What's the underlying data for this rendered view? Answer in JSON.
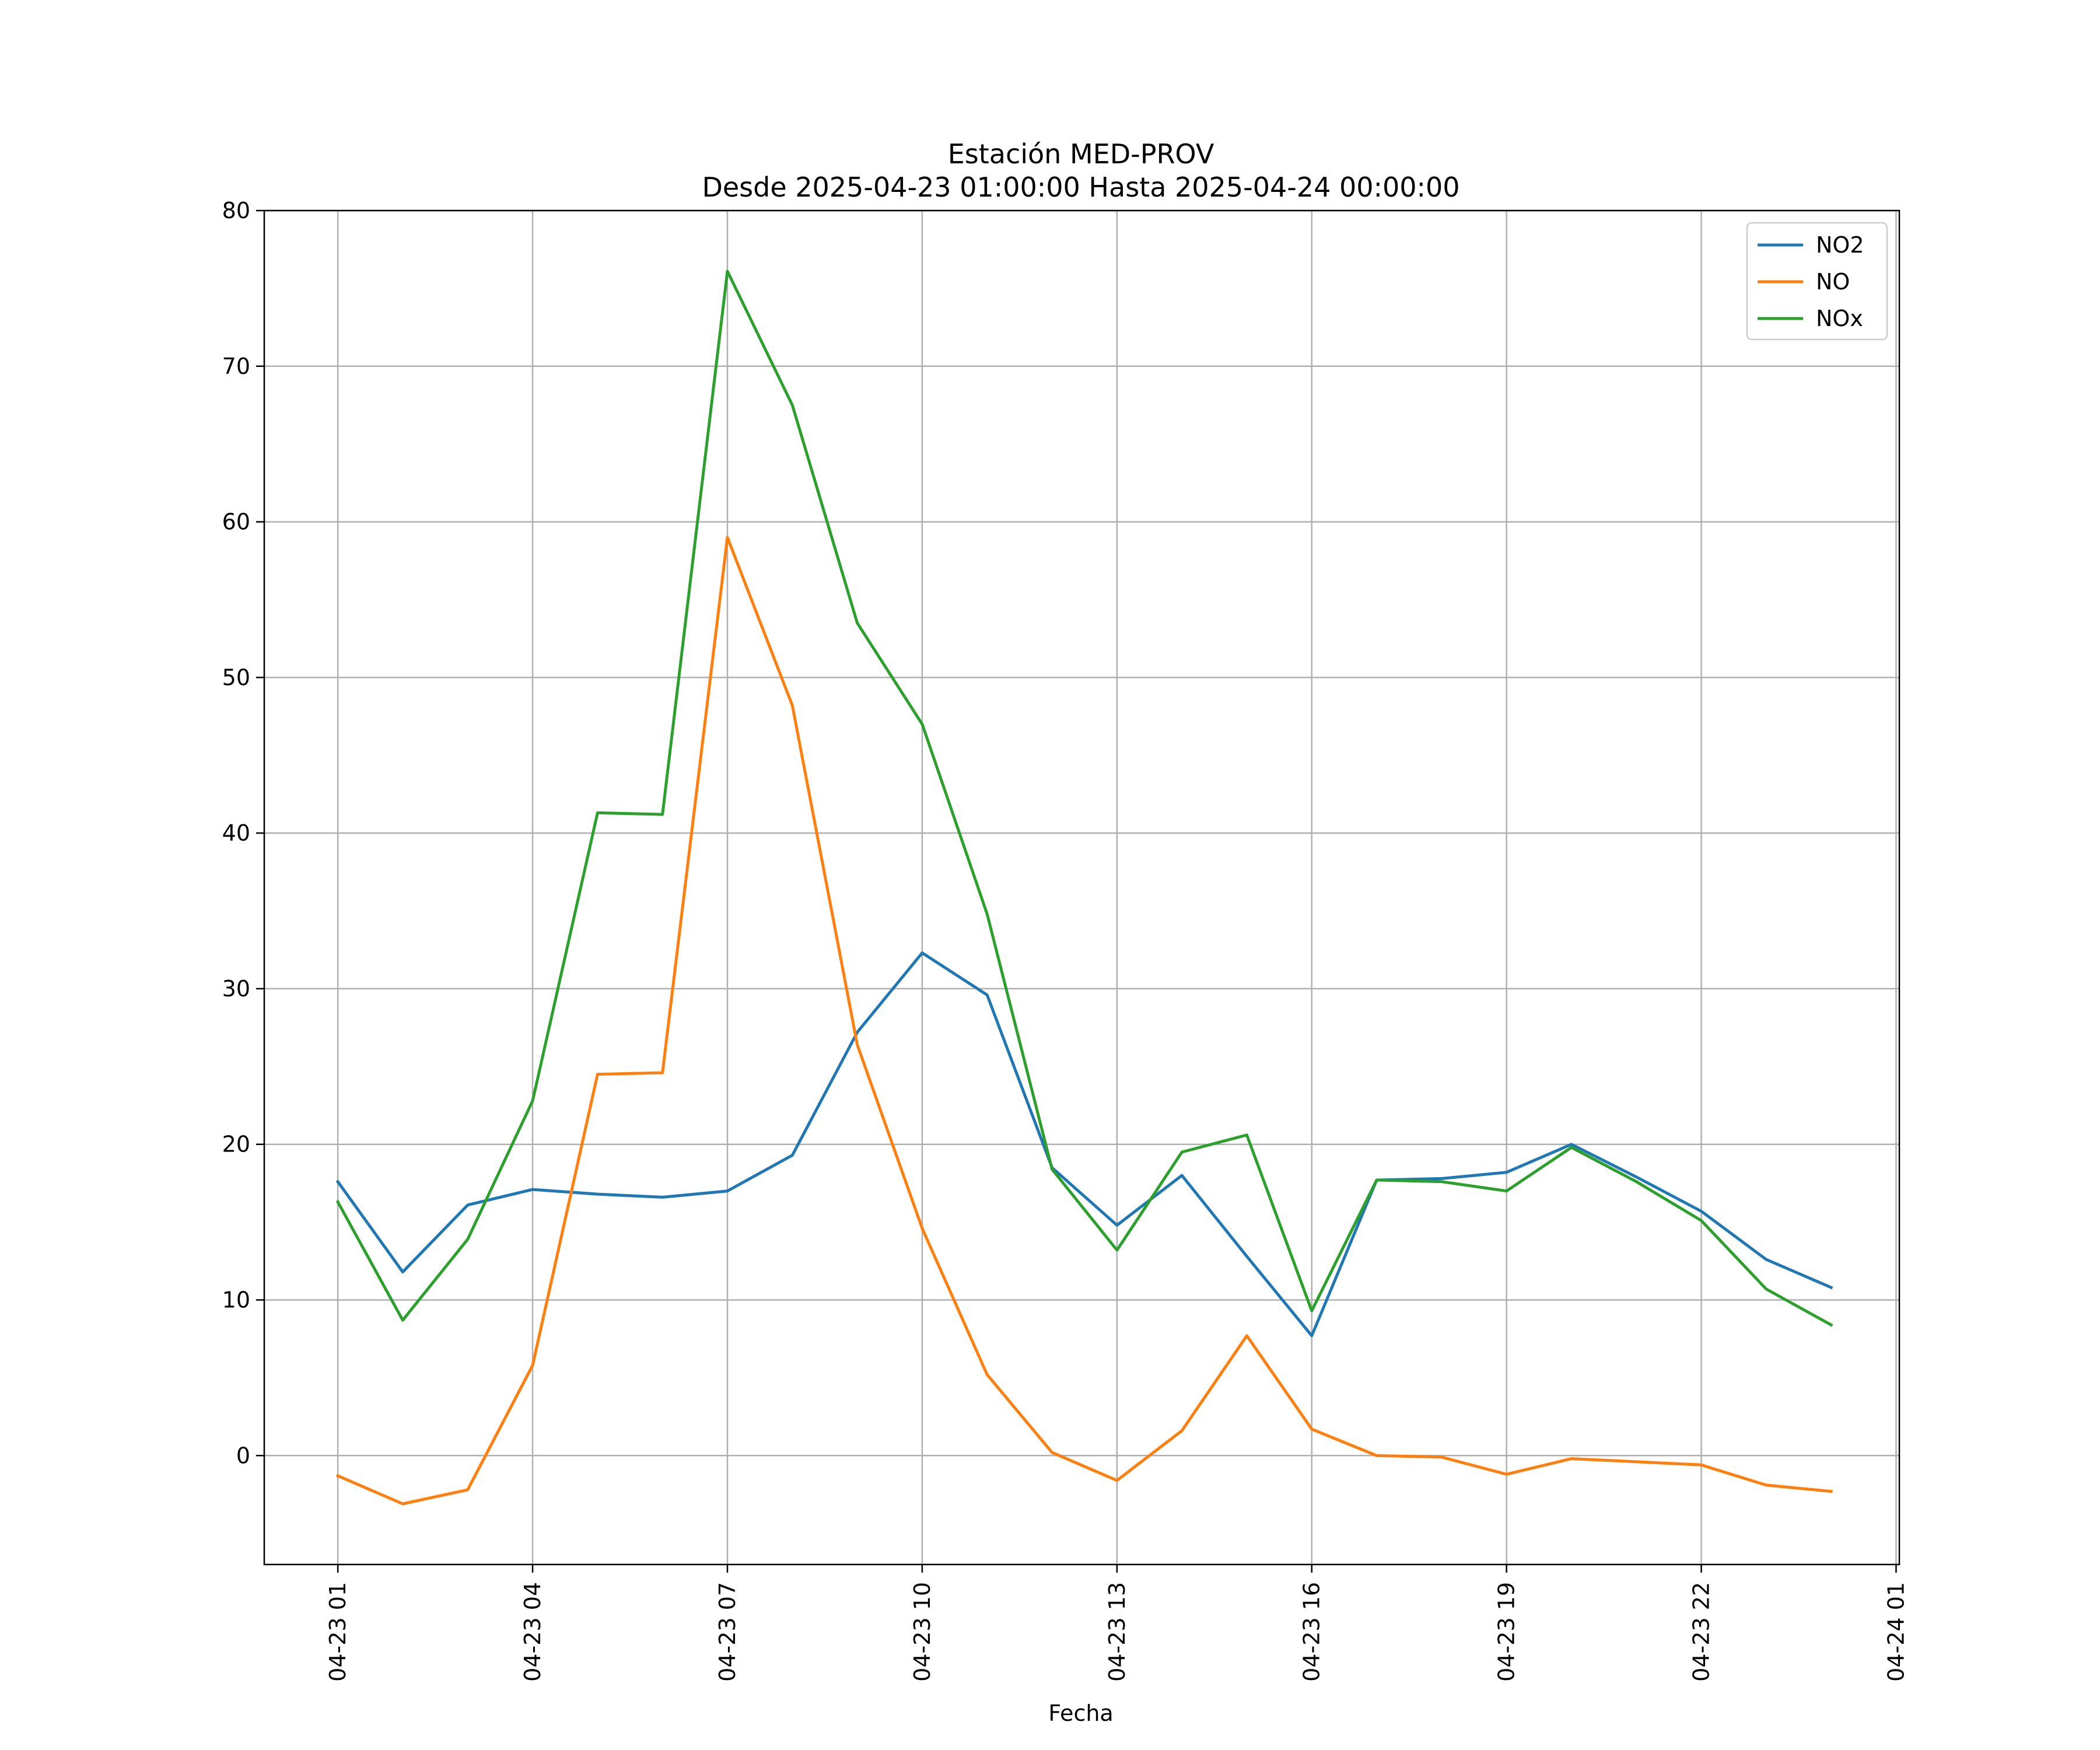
{
  "chart_data": {
    "type": "line",
    "title": "Estación MED-PROV",
    "subtitle": "Desde 2025-04-23 01:00:00 Hasta 2025-04-24 00:00:00",
    "xlabel": "Fecha",
    "ylabel": "",
    "x": [
      "2025-04-23 01:00",
      "2025-04-23 02:00",
      "2025-04-23 03:00",
      "2025-04-23 04:00",
      "2025-04-23 05:00",
      "2025-04-23 06:00",
      "2025-04-23 07:00",
      "2025-04-23 08:00",
      "2025-04-23 09:00",
      "2025-04-23 10:00",
      "2025-04-23 11:00",
      "2025-04-23 12:00",
      "2025-04-23 13:00",
      "2025-04-23 14:00",
      "2025-04-23 15:00",
      "2025-04-23 16:00",
      "2025-04-23 17:00",
      "2025-04-23 18:00",
      "2025-04-23 19:00",
      "2025-04-23 20:00",
      "2025-04-23 21:00",
      "2025-04-23 22:00",
      "2025-04-23 23:00",
      "2025-04-24 00:00"
    ],
    "xlim": [
      "2025-04-22 23:52",
      "2025-04-24 01:03"
    ],
    "xticks": [
      "04-23 01",
      "04-23 04",
      "04-23 07",
      "04-23 10",
      "04-23 13",
      "04-23 16",
      "04-23 19",
      "04-23 22",
      "04-24 01"
    ],
    "ylim": [
      -7,
      80
    ],
    "yticks": [
      0,
      10,
      20,
      30,
      40,
      50,
      60,
      70,
      80
    ],
    "grid": true,
    "legend_position": "top-right",
    "series": [
      {
        "name": "NO2",
        "color": "#1f77b4",
        "values": [
          17.6,
          11.8,
          16.1,
          17.1,
          16.8,
          16.6,
          17.0,
          19.3,
          27.2,
          32.3,
          29.6,
          18.5,
          14.8,
          18.0,
          12.8,
          7.7,
          17.7,
          17.8,
          18.2,
          20.0,
          17.9,
          15.7,
          12.6,
          10.8
        ]
      },
      {
        "name": "NO",
        "color": "#ff7f0e",
        "values": [
          -1.3,
          -3.1,
          -2.2,
          5.8,
          24.5,
          24.6,
          59.0,
          48.2,
          26.4,
          14.6,
          5.2,
          0.2,
          -1.6,
          1.6,
          7.7,
          1.7,
          0.0,
          -0.1,
          -1.2,
          -0.2,
          -0.4,
          -0.6,
          -1.9,
          -2.3
        ]
      },
      {
        "name": "NOx",
        "color": "#2ca02c",
        "values": [
          16.3,
          8.7,
          13.9,
          22.8,
          41.3,
          41.2,
          76.1,
          67.5,
          53.5,
          47.0,
          34.8,
          18.4,
          13.2,
          19.5,
          20.6,
          9.3,
          17.7,
          17.6,
          17.0,
          19.8,
          17.6,
          15.1,
          10.7,
          8.4
        ]
      }
    ]
  }
}
